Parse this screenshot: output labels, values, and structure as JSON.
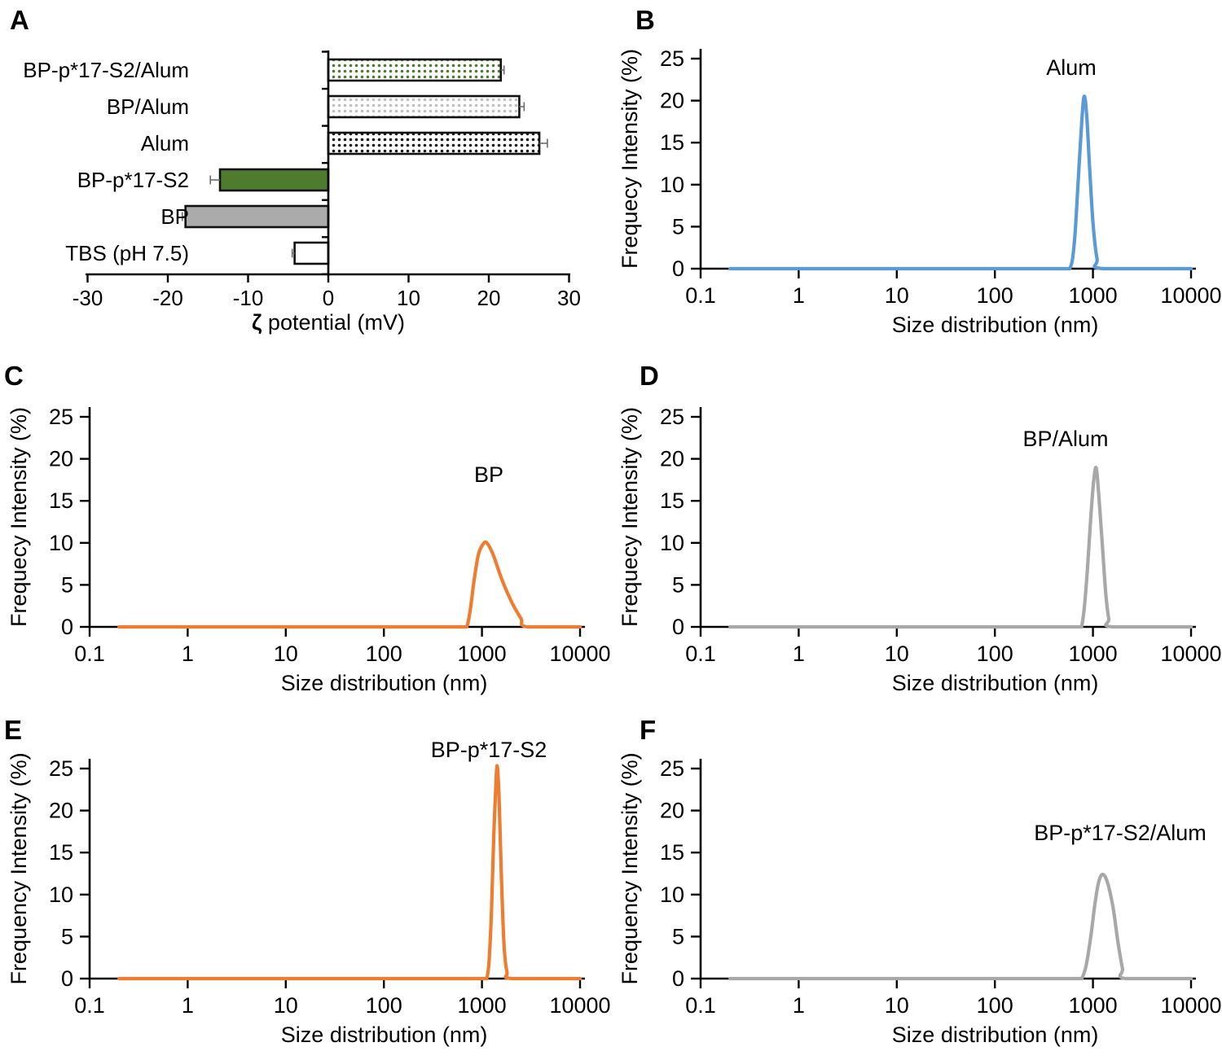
{
  "figure": {
    "background": "#ffffff",
    "panel_letters": [
      "A",
      "B",
      "C",
      "D",
      "E",
      "F"
    ]
  },
  "chart_data": [
    {
      "panel_letter": "A",
      "type": "bar",
      "orientation": "horizontal",
      "xlabel_parts": [
        {
          "text": "ζ",
          "bold": true
        },
        {
          "text": " potential (mV)",
          "bold": false
        }
      ],
      "xlim": [
        -30,
        30
      ],
      "xticks": [
        -30,
        -20,
        -10,
        0,
        10,
        20,
        30
      ],
      "categories": [
        "BP-p*17-S2/Alum",
        "BP/Alum",
        "Alum",
        "BP-p*17-S2",
        "BP",
        "TBS (pH 7.5)"
      ],
      "values": [
        21.5,
        23.8,
        26.3,
        -13.5,
        -17.8,
        -4.2
      ],
      "errors": [
        0.4,
        0.6,
        1.0,
        1.2,
        0.4,
        0.3
      ],
      "bar_styles": [
        {
          "kind": "dots",
          "dot_color": "#4E7B30",
          "bg": "#ffffff"
        },
        {
          "kind": "dots",
          "dot_color": "#BFBFBF",
          "bg": "#ffffff"
        },
        {
          "kind": "dots",
          "dot_color": "#1A1A1A",
          "bg": "#ffffff"
        },
        {
          "kind": "solid",
          "fill": "#4F7B2F"
        },
        {
          "kind": "solid",
          "fill": "#ABABAB"
        },
        {
          "kind": "solid",
          "fill": "#FFFFFF"
        }
      ],
      "bar_border_color": "#111111",
      "error_bar_color": "#6b6b6b",
      "grid": false
    },
    {
      "panel_letter": "B",
      "type": "line",
      "series_name": "Alum",
      "color": "#5B9BD5",
      "xlabel": "Size distribution (nm)",
      "ylabel": "Frequecy Intensity (%)",
      "xscale": "log",
      "xlim": [
        0.1,
        10000
      ],
      "ylim": [
        0,
        25
      ],
      "xticks": [
        0.1,
        1,
        10,
        100,
        1000,
        10000
      ],
      "yticks": [
        0,
        5,
        10,
        15,
        20,
        25
      ],
      "peak_nm": 810,
      "peak_pct": 20.4,
      "points": [
        [
          0.2,
          0
        ],
        [
          550,
          0
        ],
        [
          580,
          0
        ],
        [
          620,
          1.2
        ],
        [
          660,
          4.5
        ],
        [
          700,
          9.5
        ],
        [
          750,
          15.5
        ],
        [
          807,
          20.4
        ],
        [
          860,
          18.5
        ],
        [
          920,
          12.5
        ],
        [
          1000,
          5.5
        ],
        [
          1100,
          1.2
        ],
        [
          1260,
          0
        ],
        [
          10000,
          0
        ]
      ],
      "label_pos": [
        565,
        92
      ],
      "grid": false
    },
    {
      "panel_letter": "C",
      "type": "line",
      "series_name": "BP",
      "color": "#ED7D31",
      "xlabel": "Size distribution (nm)",
      "ylabel": "Frequecy Intensity (%)",
      "xscale": "log",
      "xlim": [
        0.1,
        10000
      ],
      "ylim": [
        0,
        25
      ],
      "xticks": [
        0.1,
        1,
        10,
        100,
        1000,
        10000
      ],
      "yticks": [
        0,
        5,
        10,
        15,
        20,
        25
      ],
      "peak_nm": 1120,
      "peak_pct": 10.0,
      "points": [
        [
          0.2,
          0
        ],
        [
          650,
          0
        ],
        [
          700,
          0
        ],
        [
          760,
          2
        ],
        [
          830,
          5.5
        ],
        [
          920,
          8.6
        ],
        [
          1020,
          9.8
        ],
        [
          1120,
          10
        ],
        [
          1300,
          8.6
        ],
        [
          1600,
          5.6
        ],
        [
          2000,
          3
        ],
        [
          2500,
          1
        ],
        [
          2900,
          0
        ],
        [
          10000,
          0
        ]
      ],
      "label_pos": [
        600,
        152
      ],
      "grid": false
    },
    {
      "panel_letter": "D",
      "type": "line",
      "series_name": "BP/Alum",
      "color": "#A8A8A8",
      "xlabel": "Size distribution (nm)",
      "ylabel": "Frequecy Intensity (%)",
      "xscale": "log",
      "xlim": [
        0.1,
        10000
      ],
      "ylim": [
        0,
        25
      ],
      "xticks": [
        0.1,
        1,
        10,
        100,
        1000,
        10000
      ],
      "yticks": [
        0,
        5,
        10,
        15,
        20,
        25
      ],
      "peak_nm": 1080,
      "peak_pct": 18.9,
      "points": [
        [
          0.2,
          0
        ],
        [
          730,
          0
        ],
        [
          765,
          0
        ],
        [
          820,
          2.5
        ],
        [
          880,
          7
        ],
        [
          950,
          13
        ],
        [
          1020,
          17.5
        ],
        [
          1080,
          18.9
        ],
        [
          1150,
          15.5
        ],
        [
          1250,
          9.5
        ],
        [
          1350,
          4
        ],
        [
          1450,
          1
        ],
        [
          1590,
          0
        ],
        [
          10000,
          0
        ]
      ],
      "label_pos": [
        558,
        108
      ],
      "grid": false
    },
    {
      "panel_letter": "E",
      "type": "line",
      "series_name": "BP-p*17-S2",
      "color": "#ED7D31",
      "xlabel": "Size distribution (nm)",
      "ylabel": "Frequency Intensity (%)",
      "xscale": "log",
      "xlim": [
        0.1,
        10000
      ],
      "ylim": [
        0,
        25
      ],
      "xticks": [
        0.1,
        1,
        10,
        100,
        1000,
        10000
      ],
      "yticks": [
        0,
        5,
        10,
        15,
        20,
        25
      ],
      "peak_nm": 1440,
      "peak_pct": 25.0,
      "points": [
        [
          0.2,
          0
        ],
        [
          1080,
          0
        ],
        [
          1120,
          0
        ],
        [
          1180,
          2
        ],
        [
          1250,
          8
        ],
        [
          1320,
          17
        ],
        [
          1400,
          24.2
        ],
        [
          1440,
          25
        ],
        [
          1500,
          21
        ],
        [
          1580,
          12
        ],
        [
          1680,
          4
        ],
        [
          1800,
          0.8
        ],
        [
          2030,
          0
        ],
        [
          10000,
          0
        ]
      ],
      "label_pos": [
        600,
        58
      ],
      "grid": false
    },
    {
      "panel_letter": "F",
      "type": "line",
      "series_name": "BP-p*17-S2/Alum",
      "color": "#A8A8A8",
      "xlabel": "Size distribution (nm)",
      "ylabel": "Frequency Intensity (%)",
      "xscale": "log",
      "xlim": [
        0.1,
        10000
      ],
      "ylim": [
        0,
        25
      ],
      "xticks": [
        0.1,
        1,
        10,
        100,
        1000,
        10000
      ],
      "yticks": [
        0,
        5,
        10,
        15,
        20,
        25
      ],
      "peak_nm": 1260,
      "peak_pct": 12.4,
      "points": [
        [
          0.2,
          0
        ],
        [
          740,
          0
        ],
        [
          770,
          0
        ],
        [
          850,
          1.5
        ],
        [
          950,
          5
        ],
        [
          1050,
          9
        ],
        [
          1150,
          11.6
        ],
        [
          1260,
          12.4
        ],
        [
          1400,
          11.5
        ],
        [
          1600,
          8.5
        ],
        [
          1800,
          4.3
        ],
        [
          2000,
          1.2
        ],
        [
          2150,
          0
        ],
        [
          10000,
          0
        ]
      ],
      "label_pos": [
        625,
        160
      ],
      "grid": false
    }
  ]
}
